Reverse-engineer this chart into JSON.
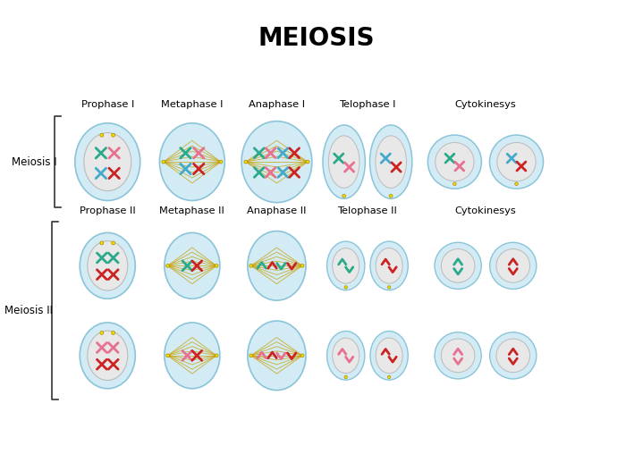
{
  "title": "MEIOSIS",
  "title_fontsize": 20,
  "title_fontweight": "bold",
  "bg_color": "#ffffff",
  "cell_outer_facecolor": "#cce8f4",
  "cell_outer_edgecolor": "#7bbcd4",
  "cell_inner_facecolor": "#e8e8e8",
  "cell_inner_edgecolor": "#bbbbbb",
  "row1_label": "Meiosis I",
  "row2_label": "Meiosis II",
  "phases_row1": [
    "Prophase I",
    "Metaphase I",
    "Anaphase I",
    "Telophase I",
    "Cytokinesys"
  ],
  "phases_row2": [
    "Prophase II",
    "Metaphase II",
    "Anaphase II",
    "Telophase II",
    "Cytokinesys"
  ],
  "chr_green": "#2aaa8a",
  "chr_pink": "#e87090",
  "chr_red": "#cc2222",
  "chr_cyan": "#44aacc",
  "spindle_color": "#c8a000",
  "centriole_color": "#f0e000",
  "centriole_edge": "#aa8800",
  "label_fontsize": 8.2,
  "row_label_fontsize": 8.5
}
